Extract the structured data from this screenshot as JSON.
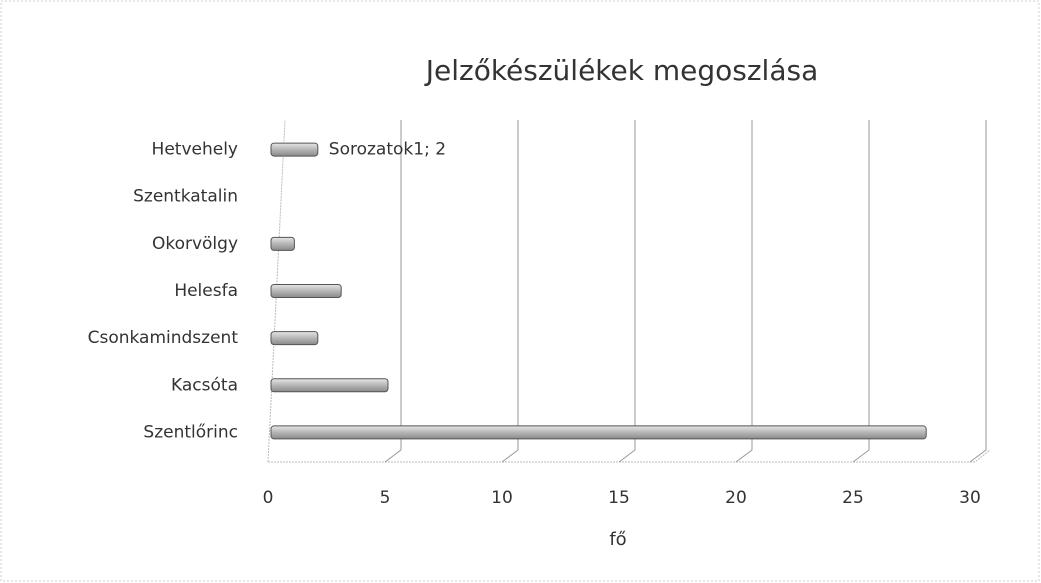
{
  "chart_data": {
    "type": "bar",
    "orientation": "horizontal",
    "title": "Jelzőkészülékek megoszlása",
    "x_label": "fő",
    "categories": [
      "Hetvehely",
      "Szentkatalin",
      "Okorvölgy",
      "Helesfa",
      "Csonkamindszent",
      "Kacsóta",
      "Szentlőrinc"
    ],
    "values": [
      2,
      0,
      1,
      3,
      2,
      5,
      28
    ],
    "value_labels": [
      "Sorozatok1; 2",
      null,
      null,
      null,
      null,
      null,
      null
    ],
    "color": "#b8b8b8",
    "xlim": [
      0,
      30
    ],
    "xticks": [
      0,
      5,
      10,
      15,
      20,
      25,
      30
    ],
    "grid": true
  }
}
